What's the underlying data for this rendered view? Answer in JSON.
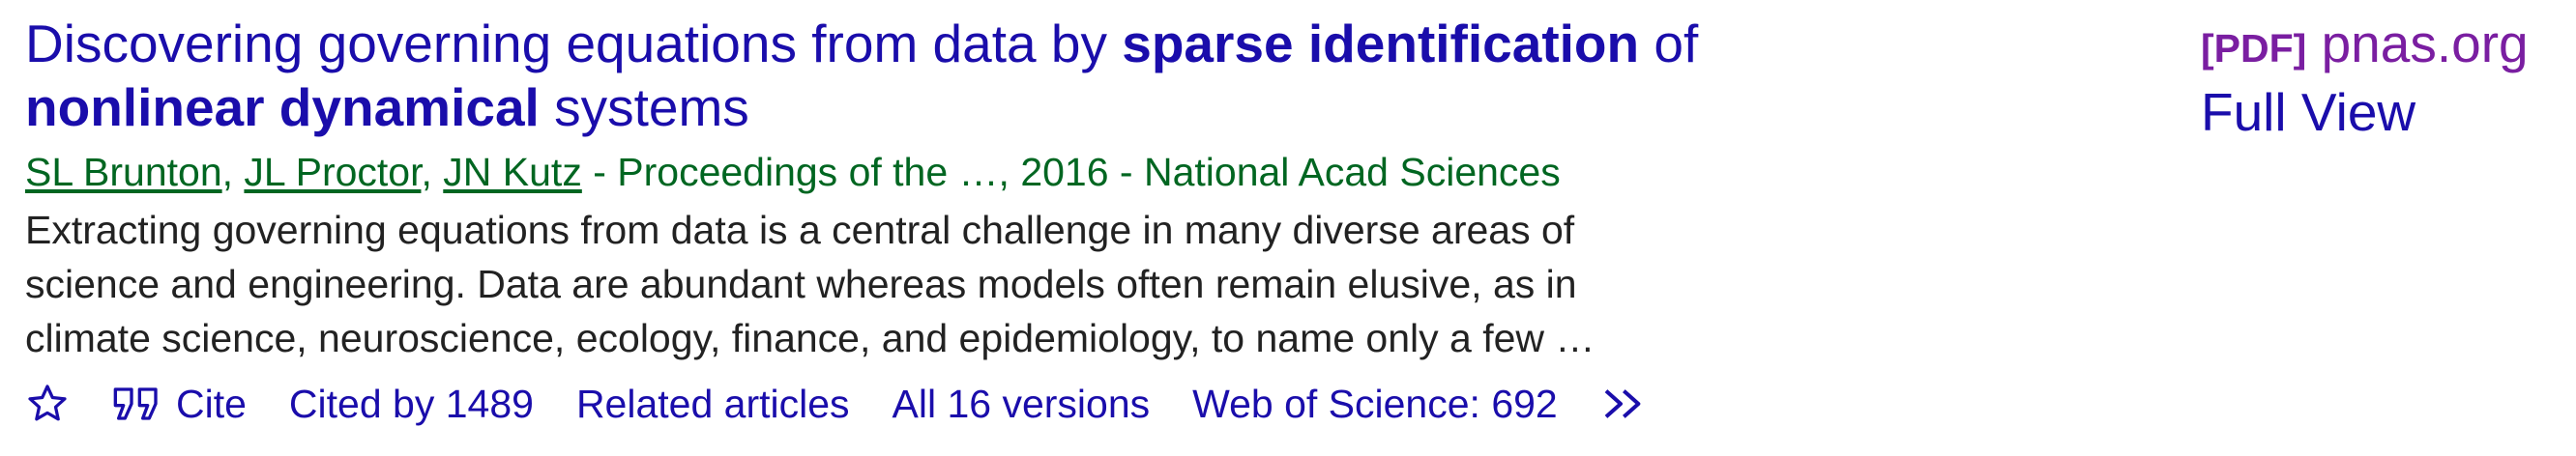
{
  "result": {
    "title_parts": {
      "p1": "Discovering governing equations from data by ",
      "p2": "sparse identification",
      "p3": " of ",
      "p4": "nonlinear dynamical",
      "p5": " systems"
    },
    "authors": [
      {
        "name": "SL Brunton"
      },
      {
        "name": "JL Proctor"
      },
      {
        "name": "JN Kutz"
      }
    ],
    "author_separator": ", ",
    "source": " - Proceedings of the …, 2016 - National Acad Sciences",
    "snippet_lines": [
      "Extracting governing equations from data is a central challenge in many diverse areas of",
      "science and engineering. Data are abundant whereas models often remain elusive, as in",
      "climate science, neuroscience, ecology, finance, and epidemiology, to name only a few …"
    ],
    "actions": {
      "save_icon": "star-icon",
      "cite_icon": "quote-icon",
      "cite_label": "Cite",
      "cited_by_label": "Cited by 1489",
      "related_label": "Related articles",
      "versions_label": "All 16 versions",
      "wos_label": "Web of Science: 692",
      "more_icon": "double-chevron-right-icon"
    }
  },
  "side": {
    "pdf_tag": "[PDF]",
    "domain": "pnas.org",
    "full_view_label": "Full View"
  },
  "colors": {
    "link": "#1a0dab",
    "author_green": "#006621",
    "snippet_text": "#222222",
    "pdf_purple": "#7a1ea1"
  }
}
